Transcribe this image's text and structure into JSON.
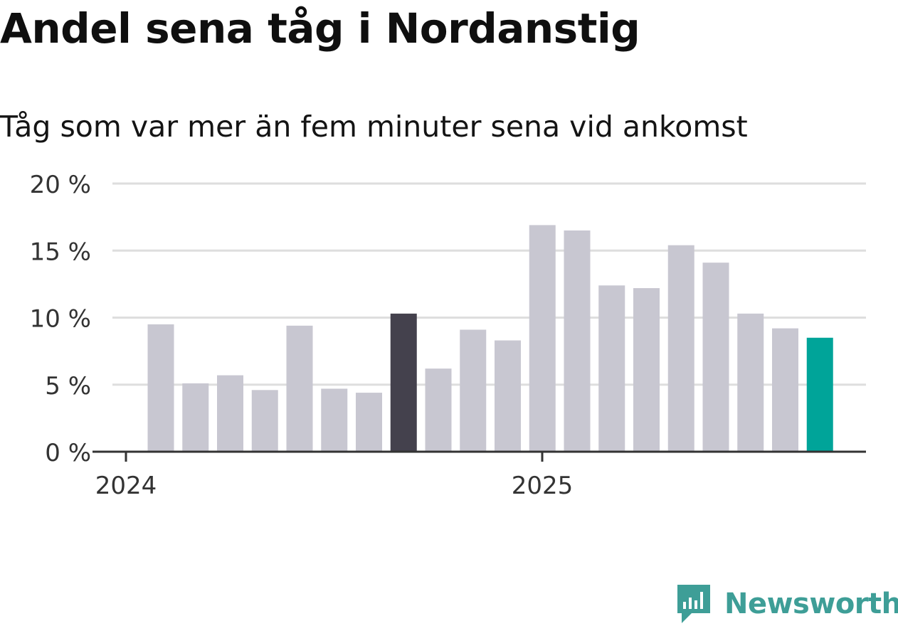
{
  "header": {
    "title": "Andel sena tåg i Nordanstig",
    "subtitle": "Tåg som var mer än fem minuter sena vid ankomst"
  },
  "brand": {
    "name": "Newsworthy",
    "logo_icon": "newsworthy-logo-icon",
    "color": "#3e9e97"
  },
  "colors": {
    "default_bar": "#c8c7d1",
    "highlight_bar": "#44414d",
    "latest_bar": "#00a499",
    "grid": "#dedede",
    "axis": "#333333"
  },
  "chart_data": {
    "type": "bar",
    "title": "Andel sena tåg i Nordanstig",
    "subtitle": "Tåg som var mer än fem minuter sena vid ankomst",
    "x_tick_labels": [
      "2024",
      "2025"
    ],
    "x_tick_positions": [
      "2024-01",
      "2025-01"
    ],
    "categories": [
      "2024-02",
      "2024-03",
      "2024-04",
      "2024-05",
      "2024-06",
      "2024-07",
      "2024-08",
      "2024-09",
      "2024-10",
      "2024-11",
      "2024-12",
      "2025-01",
      "2025-02",
      "2025-03",
      "2025-04",
      "2025-05",
      "2025-06",
      "2025-07",
      "2025-08",
      "2025-09"
    ],
    "values": [
      9.5,
      5.1,
      5.7,
      4.6,
      9.4,
      4.7,
      4.4,
      10.3,
      6.2,
      9.1,
      8.3,
      16.9,
      16.5,
      12.4,
      12.2,
      15.4,
      14.1,
      10.3,
      9.2,
      8.5
    ],
    "highlight_index": 7,
    "latest_index": 19,
    "ylim": [
      0,
      20
    ],
    "y_ticks": [
      0,
      5,
      10,
      15,
      20
    ],
    "y_tick_labels": [
      "0 %",
      "5 %",
      "10 %",
      "15 %",
      "20 %"
    ],
    "grid": true,
    "xlabel": "",
    "ylabel": ""
  }
}
